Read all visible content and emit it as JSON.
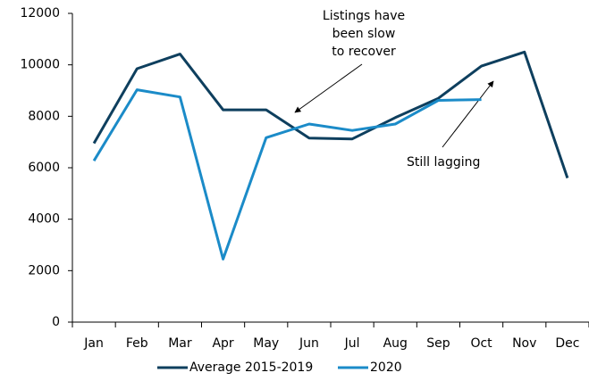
{
  "chart_data": {
    "type": "line",
    "categories": [
      "Jan",
      "Feb",
      "Mar",
      "Apr",
      "May",
      "Jun",
      "Jul",
      "Aug",
      "Sep",
      "Oct",
      "Nov",
      "Dec"
    ],
    "series": [
      {
        "name": "Average 2015-2019",
        "color": "#0e3f5e",
        "values": [
          6950,
          9850,
          10420,
          8250,
          8250,
          7150,
          7120,
          7950,
          8700,
          9950,
          10500,
          5600
        ]
      },
      {
        "name": "2020",
        "color": "#1b8bc8",
        "values": [
          6270,
          9030,
          8750,
          2450,
          7170,
          7700,
          7450,
          7700,
          8620,
          8650,
          null,
          null
        ]
      }
    ],
    "ylim": [
      0,
      12000
    ],
    "yticks": [
      0,
      2000,
      4000,
      6000,
      8000,
      10000,
      12000
    ],
    "annotations": [
      {
        "lines": [
          "Listings have",
          "been slow",
          "to recover"
        ]
      },
      {
        "lines": [
          "Still lagging"
        ]
      }
    ],
    "legend": "bottom"
  }
}
